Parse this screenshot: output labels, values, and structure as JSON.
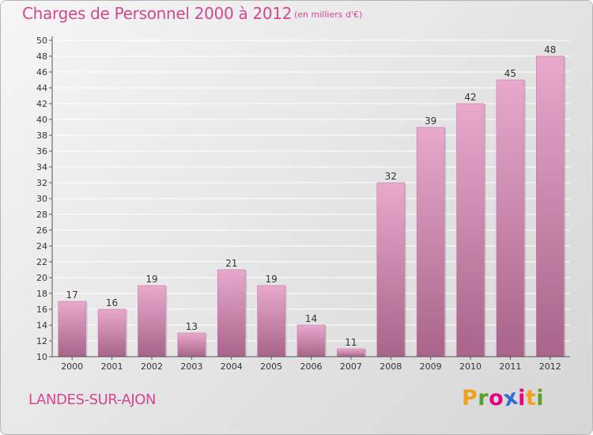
{
  "header": {
    "title": "Charges de Personnel 2000 à 2012",
    "unit": "(en milliers d'€)"
  },
  "footer": {
    "commune": "LANDES-SUR-AJON",
    "logo": [
      "P",
      "r",
      "o",
      "x",
      "i",
      "t",
      "i"
    ]
  },
  "colors": {
    "accent": "#d2488f",
    "bar_top": "#e8a9cd",
    "bar_bottom": "#a8648a",
    "logo": [
      "#f0a21a",
      "#5aa02c",
      "#e4007f",
      "#2b6fd6",
      "#e4007f",
      "#f0a21a",
      "#5aa02c"
    ]
  },
  "chart_data": {
    "type": "bar",
    "categories": [
      "2000",
      "2001",
      "2002",
      "2003",
      "2004",
      "2005",
      "2006",
      "2007",
      "2008",
      "2009",
      "2010",
      "2011",
      "2012"
    ],
    "values": [
      17,
      16,
      19,
      13,
      21,
      19,
      14,
      11,
      32,
      39,
      42,
      45,
      48
    ],
    "ylim": [
      10,
      50
    ],
    "yticks": [
      10,
      12,
      14,
      16,
      18,
      20,
      22,
      24,
      26,
      28,
      30,
      32,
      34,
      36,
      38,
      40,
      42,
      44,
      46,
      48,
      50
    ],
    "grid": true,
    "data_labels": true
  }
}
